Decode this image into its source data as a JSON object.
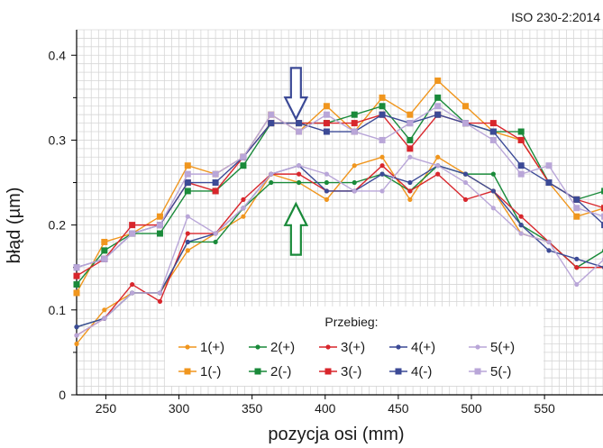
{
  "chart_data": {
    "type": "line",
    "title": "",
    "standard_label": "ISO 230-2:2014",
    "xlabel": "pozycja osi (mm)",
    "ylabel": "błąd (µm)",
    "xlim": [
      230,
      590
    ],
    "ylim": [
      0,
      0.43
    ],
    "xticks": [
      250,
      300,
      350,
      400,
      450,
      500,
      550
    ],
    "yticks": [
      0,
      0.1,
      0.2,
      0.3,
      0.4
    ],
    "grid": true,
    "legend_title": "Przebieg:",
    "legend_position": "bottom-center",
    "x": [
      230,
      249,
      268,
      287,
      306,
      325,
      344,
      363,
      382,
      401,
      420,
      439,
      458,
      477,
      496,
      515,
      534,
      553,
      572,
      591
    ],
    "series": [
      {
        "name": "1(+)",
        "color": "#f0961e",
        "marker": "circle",
        "values": [
          0.06,
          0.1,
          0.12,
          0.12,
          0.17,
          0.19,
          0.21,
          0.26,
          0.25,
          0.23,
          0.27,
          0.28,
          0.23,
          0.28,
          0.26,
          0.24,
          0.19,
          0.18,
          0.15,
          0.15
        ]
      },
      {
        "name": "2(+)",
        "color": "#1a8a3a",
        "marker": "circle",
        "values": [
          0.08,
          0.09,
          0.12,
          0.12,
          0.18,
          0.18,
          0.22,
          0.25,
          0.25,
          0.25,
          0.25,
          0.26,
          0.24,
          0.27,
          0.26,
          0.26,
          0.2,
          0.18,
          0.15,
          0.17
        ]
      },
      {
        "name": "3(+)",
        "color": "#d8262c",
        "marker": "circle",
        "values": [
          0.07,
          0.09,
          0.13,
          0.11,
          0.19,
          0.19,
          0.23,
          0.26,
          0.26,
          0.24,
          0.24,
          0.27,
          0.24,
          0.26,
          0.23,
          0.24,
          0.21,
          0.18,
          0.15,
          0.15
        ]
      },
      {
        "name": "4(+)",
        "color": "#3c4a96",
        "marker": "circle",
        "values": [
          0.08,
          0.09,
          0.12,
          0.12,
          0.18,
          0.19,
          0.22,
          0.26,
          0.27,
          0.24,
          0.24,
          0.26,
          0.25,
          0.27,
          0.26,
          0.24,
          0.2,
          0.17,
          0.16,
          0.15
        ]
      },
      {
        "name": "5(+)",
        "color": "#b9a6d8",
        "marker": "circle",
        "values": [
          0.07,
          0.09,
          0.12,
          0.12,
          0.21,
          0.19,
          0.22,
          0.26,
          0.27,
          0.26,
          0.24,
          0.24,
          0.28,
          0.27,
          0.25,
          0.22,
          0.19,
          0.18,
          0.13,
          0.16
        ]
      },
      {
        "name": "1(-)",
        "color": "#f0961e",
        "marker": "square",
        "values": [
          0.12,
          0.18,
          0.19,
          0.21,
          0.27,
          0.26,
          0.28,
          0.33,
          0.31,
          0.34,
          0.31,
          0.35,
          0.33,
          0.37,
          0.34,
          0.31,
          0.3,
          0.25,
          0.21,
          0.22
        ]
      },
      {
        "name": "2(-)",
        "color": "#1a8a3a",
        "marker": "square",
        "values": [
          0.13,
          0.17,
          0.19,
          0.19,
          0.24,
          0.24,
          0.27,
          0.32,
          0.32,
          0.32,
          0.33,
          0.34,
          0.3,
          0.35,
          0.32,
          0.31,
          0.31,
          0.25,
          0.23,
          0.24
        ]
      },
      {
        "name": "3(-)",
        "color": "#d8262c",
        "marker": "square",
        "values": [
          0.14,
          0.16,
          0.2,
          0.2,
          0.25,
          0.24,
          0.28,
          0.32,
          0.32,
          0.32,
          0.32,
          0.33,
          0.29,
          0.33,
          0.32,
          0.32,
          0.3,
          0.25,
          0.23,
          0.22
        ]
      },
      {
        "name": "4(-)",
        "color": "#3c4a96",
        "marker": "square",
        "values": [
          0.15,
          0.16,
          0.19,
          0.2,
          0.25,
          0.25,
          0.28,
          0.32,
          0.32,
          0.31,
          0.31,
          0.33,
          0.32,
          0.33,
          0.32,
          0.31,
          0.27,
          0.25,
          0.23,
          0.2
        ]
      },
      {
        "name": "5(-)",
        "color": "#b9a6d8",
        "marker": "square",
        "values": [
          0.15,
          0.16,
          0.19,
          0.2,
          0.26,
          0.26,
          0.28,
          0.33,
          0.31,
          0.33,
          0.31,
          0.3,
          0.32,
          0.34,
          0.32,
          0.3,
          0.26,
          0.27,
          0.22,
          0.21
        ]
      }
    ],
    "annotations": [
      {
        "type": "arrow-down",
        "x": 380,
        "y_from": 0.385,
        "y_to": 0.325,
        "color": "#3c4a96"
      },
      {
        "type": "arrow-up",
        "x": 380,
        "y_from": 0.165,
        "y_to": 0.225,
        "color": "#1a8a3a"
      }
    ]
  }
}
